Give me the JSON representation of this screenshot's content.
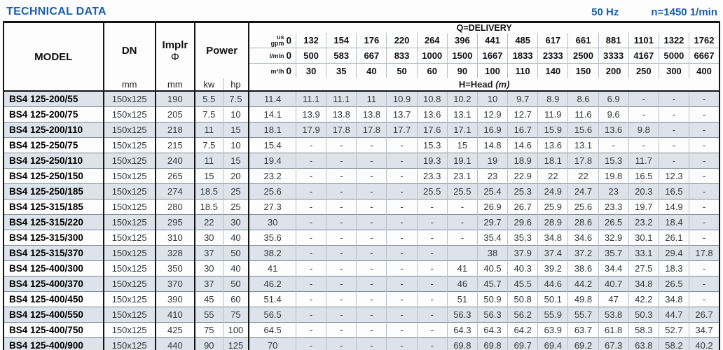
{
  "page": {
    "title": "TECHNICAL DATA",
    "frequency": "50 Hz",
    "speed": "n=1450 1/min"
  },
  "colors": {
    "accent_blue": "#1d5fa9",
    "row_shade": "#dce3ea",
    "row_plain": "#fdfdfd"
  },
  "table": {
    "column_headers": {
      "model": "MODEL",
      "dn": "DN",
      "implr_line1": "Implr",
      "implr_symbol": "Φ",
      "power": "Power",
      "dn_unit": "mm",
      "implr_unit": "mm",
      "power_kw": "kw",
      "power_hp": "hp",
      "delivery_label": "Q=DELIVERY",
      "head_label": "H=Head",
      "head_unit": "(m)",
      "gpm_unit_top": "us",
      "gpm_unit_bottom": "gpm",
      "lmin_unit": "l/min",
      "m3h_unit": "m³/h"
    },
    "flow": {
      "us_gpm": [
        "0",
        "132",
        "154",
        "176",
        "220",
        "264",
        "396",
        "441",
        "485",
        "617",
        "661",
        "881",
        "1101",
        "1322",
        "1762"
      ],
      "l_min": [
        "0",
        "500",
        "583",
        "667",
        "833",
        "1000",
        "1500",
        "1667",
        "1833",
        "2333",
        "2500",
        "3333",
        "4167",
        "5000",
        "6667"
      ],
      "m3_h": [
        "0",
        "30",
        "35",
        "40",
        "50",
        "60",
        "90",
        "100",
        "110",
        "140",
        "150",
        "200",
        "250",
        "300",
        "400"
      ]
    },
    "rows": [
      {
        "model": "BS4 125-200/55",
        "dn": "150x125",
        "implr": "190",
        "kw": "5.5",
        "hp": "7.5",
        "head": [
          "11.4",
          "11.1",
          "11.1",
          "11",
          "10.9",
          "10.8",
          "10.2",
          "10",
          "9.7",
          "8.9",
          "8.6",
          "6.9",
          "-",
          "-",
          "-"
        ]
      },
      {
        "model": "BS4 125-200/75",
        "dn": "150x125",
        "implr": "205",
        "kw": "7.5",
        "hp": "10",
        "head": [
          "14.1",
          "13.9",
          "13.8",
          "13.8",
          "13.7",
          "13.6",
          "13.1",
          "12.9",
          "12.7",
          "11.9",
          "11.6",
          "9.6",
          "-",
          "-",
          "-"
        ]
      },
      {
        "model": "BS4 125-200/110",
        "dn": "150x125",
        "implr": "218",
        "kw": "11",
        "hp": "15",
        "head": [
          "18.1",
          "17.9",
          "17.8",
          "17.8",
          "17.7",
          "17.6",
          "17.1",
          "16.9",
          "16.7",
          "15.9",
          "15.6",
          "13.6",
          "9.8",
          "-",
          "-"
        ]
      },
      {
        "model": "BS4 125-250/75",
        "dn": "150x125",
        "implr": "215",
        "kw": "7.5",
        "hp": "10",
        "head": [
          "15.4",
          "-",
          "-",
          "-",
          "-",
          "15.3",
          "15",
          "14.8",
          "14.6",
          "13.6",
          "13.1",
          "-",
          "-",
          "-",
          "-"
        ]
      },
      {
        "model": "BS4 125-250/110",
        "dn": "150x125",
        "implr": "240",
        "kw": "11",
        "hp": "15",
        "head": [
          "19.4",
          "-",
          "-",
          "-",
          "-",
          "19.3",
          "19.1",
          "19",
          "18.9",
          "18.1",
          "17.8",
          "15.3",
          "11.7",
          "-",
          "-"
        ]
      },
      {
        "model": "BS4 125-250/150",
        "dn": "150x125",
        "implr": "265",
        "kw": "15",
        "hp": "20",
        "head": [
          "23.2",
          "-",
          "-",
          "-",
          "-",
          "23.3",
          "23.1",
          "23",
          "22.9",
          "22",
          "22",
          "19.8",
          "16.5",
          "12.3",
          "-"
        ]
      },
      {
        "model": "BS4 125-250/185",
        "dn": "150x125",
        "implr": "274",
        "kw": "18.5",
        "hp": "25",
        "head": [
          "25.6",
          "-",
          "-",
          "-",
          "-",
          "25.5",
          "25.5",
          "25.4",
          "25.3",
          "24.9",
          "24.7",
          "23",
          "20.3",
          "16.5",
          "-"
        ]
      },
      {
        "model": "BS4 125-315/185",
        "dn": "150x125",
        "implr": "280",
        "kw": "18.5",
        "hp": "25",
        "head": [
          "27.3",
          "-",
          "-",
          "-",
          "-",
          "-",
          "-",
          "26.9",
          "26.7",
          "25.9",
          "25.6",
          "23.3",
          "19.7",
          "14.9",
          "-"
        ]
      },
      {
        "model": "BS4 125-315/220",
        "dn": "150x125",
        "implr": "295",
        "kw": "22",
        "hp": "30",
        "head": [
          "30",
          "-",
          "-",
          "-",
          "-",
          "-",
          "-",
          "29.7",
          "29.6",
          "28.9",
          "28.6",
          "26.5",
          "23.2",
          "18.4",
          "-"
        ]
      },
      {
        "model": "BS4 125-315/300",
        "dn": "150x125",
        "implr": "310",
        "kw": "30",
        "hp": "40",
        "head": [
          "35.6",
          "-",
          "-",
          "-",
          "-",
          "-",
          "-",
          "35.4",
          "35.3",
          "34.8",
          "34.6",
          "32.9",
          "30.1",
          "26.1",
          "-"
        ]
      },
      {
        "model": "BS4 125-315/370",
        "dn": "150x125",
        "implr": "328",
        "kw": "37",
        "hp": "50",
        "head": [
          "38.2",
          "-",
          "-",
          "-",
          "-",
          "-",
          "",
          "38",
          "37.9",
          "37.4",
          "37.2",
          "35.7",
          "33.1",
          "29.4",
          "17.8"
        ]
      },
      {
        "model": "BS4 125-400/300",
        "dn": "150x125",
        "implr": "350",
        "kw": "30",
        "hp": "40",
        "head": [
          "41",
          "-",
          "-",
          "-",
          "-",
          "-",
          "41",
          "40.5",
          "40.3",
          "39.2",
          "38.6",
          "34.4",
          "27.5",
          "18.3",
          "-"
        ]
      },
      {
        "model": "BS4 125-400/370",
        "dn": "150x125",
        "implr": "370",
        "kw": "37",
        "hp": "50",
        "head": [
          "46.2",
          "-",
          "-",
          "-",
          "-",
          "-",
          "46",
          "45.7",
          "45.5",
          "44.6",
          "44.2",
          "40.7",
          "34.8",
          "26.5",
          "-"
        ]
      },
      {
        "model": "BS4 125-400/450",
        "dn": "150x125",
        "implr": "390",
        "kw": "45",
        "hp": "60",
        "head": [
          "51.4",
          "-",
          "-",
          "-",
          "-",
          "-",
          "51",
          "50.9",
          "50.8",
          "50.1",
          "49.8",
          "47",
          "42.2",
          "34.8",
          "-"
        ]
      },
      {
        "model": "BS4 125-400/550",
        "dn": "150x125",
        "implr": "410",
        "kw": "55",
        "hp": "75",
        "head": [
          "56.5",
          "-",
          "-",
          "-",
          "-",
          "-",
          "56.3",
          "56.3",
          "56.2",
          "55.9",
          "55.7",
          "53.8",
          "50.3",
          "44.7",
          "26.7"
        ]
      },
      {
        "model": "BS4 125-400/750",
        "dn": "150x125",
        "implr": "425",
        "kw": "75",
        "hp": "100",
        "head": [
          "64.5",
          "-",
          "-",
          "-",
          "-",
          "-",
          "64.3",
          "64.3",
          "64.2",
          "63.9",
          "63.7",
          "61.8",
          "58.3",
          "52.7",
          "34.7"
        ]
      },
      {
        "model": "BS4 125-400/900",
        "dn": "150x125",
        "implr": "440",
        "kw": "90",
        "hp": "125",
        "head": [
          "70",
          "-",
          "-",
          "-",
          "-",
          "-",
          "69.8",
          "69.8",
          "69.7",
          "69.4",
          "69.2",
          "67.3",
          "63.8",
          "58.2",
          "40.2"
        ]
      }
    ]
  }
}
